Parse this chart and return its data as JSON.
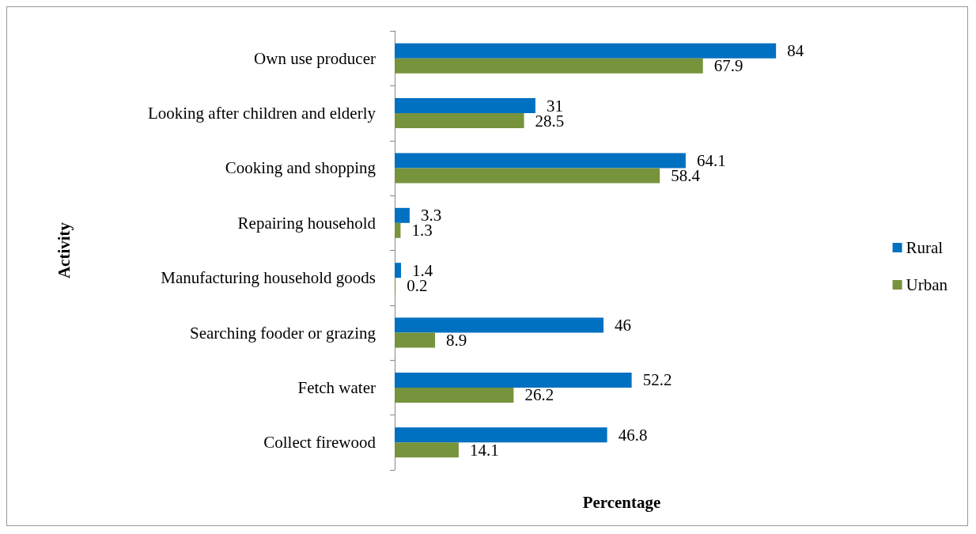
{
  "chart_data": {
    "type": "bar",
    "orientation": "horizontal",
    "xlabel": "Percentage",
    "ylabel": "Activity",
    "categories": [
      "Own use producer",
      "Looking after children and elderly",
      "Cooking and shopping",
      "Repairing household",
      "Manufacturing household goods",
      "Searching fooder or grazing",
      "Fetch water",
      "Collect firewood"
    ],
    "series": [
      {
        "name": "Rural",
        "color": "#0070c0",
        "values": [
          84,
          31,
          64.1,
          3.3,
          1.4,
          46,
          52.2,
          46.8
        ]
      },
      {
        "name": "Urban",
        "color": "#77933c",
        "values": [
          67.9,
          28.5,
          58.4,
          1.3,
          0.2,
          8.9,
          26.2,
          14.1
        ]
      }
    ],
    "data_labels": true,
    "legend": "right",
    "grid": false,
    "tick_labels": "y"
  }
}
